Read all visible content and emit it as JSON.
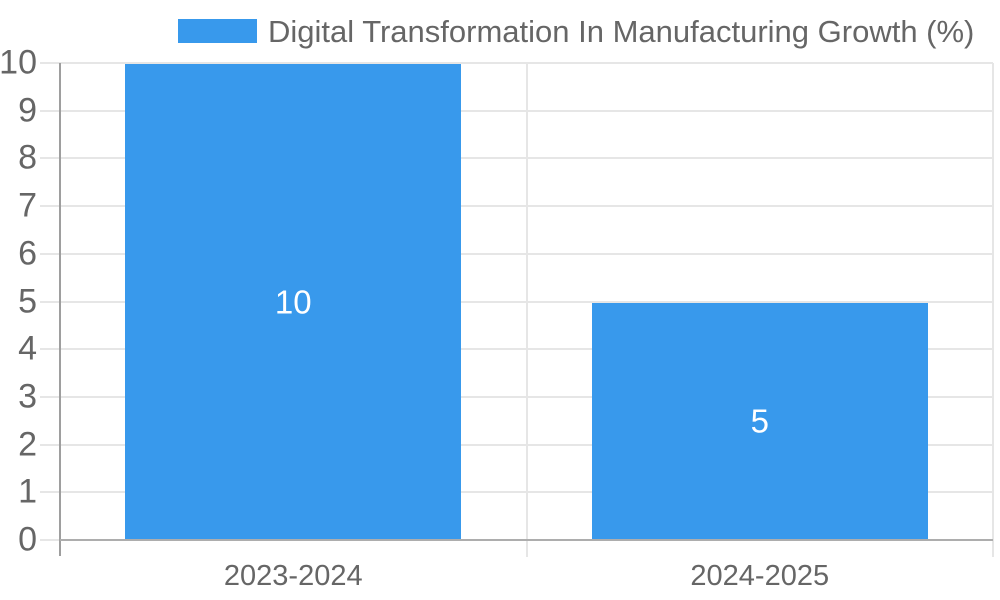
{
  "colors": {
    "bar": "#3899ec",
    "grid": "#e6e6e6",
    "axis_x": "#adadad",
    "axis_y": "#9e9e9e",
    "text": "#666666",
    "value_label": "#ffffff",
    "background": "#ffffff"
  },
  "chart_data": {
    "type": "bar",
    "title": "Digital Transformation In Manufacturing Growth (%)",
    "categories": [
      "2023-2024",
      "2024-2025"
    ],
    "series": [
      {
        "name": "Digital Transformation In Manufacturing Growth (%)",
        "values": [
          10,
          5
        ]
      }
    ],
    "xlabel": "",
    "ylabel": "",
    "ylim": [
      0,
      10
    ],
    "ytick_step": 1,
    "grid": true,
    "legend_position": "top",
    "value_labels_inside_bars": true
  }
}
